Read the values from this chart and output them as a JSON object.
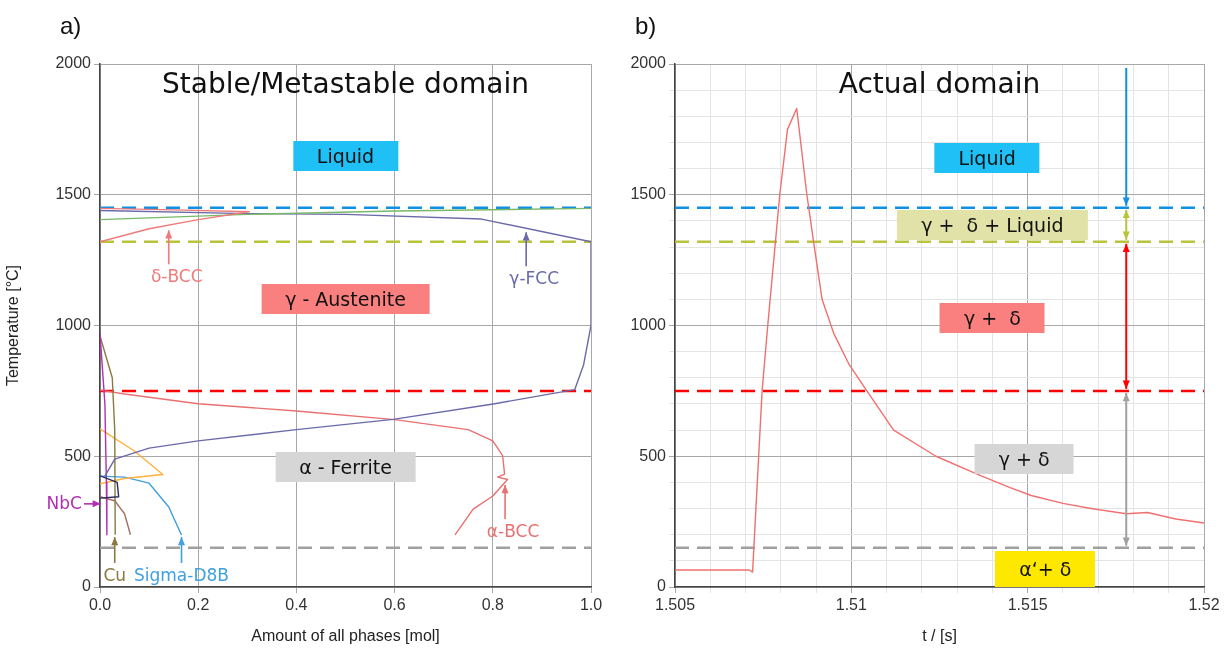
{
  "chart_data": [
    {
      "type": "line",
      "title": "a)",
      "subtitle": "Stable/Metastable domain",
      "xlabel": "Amount of all phases [mol]",
      "ylabel": "Temperature [°C]",
      "xlim": [
        0,
        1
      ],
      "ylim": [
        0,
        2000
      ],
      "xticks": [
        {
          "value": 0,
          "label": "0.0"
        },
        0.2,
        0.4,
        0.6,
        0.8,
        {
          "value": 1,
          "label": "1.0"
        }
      ],
      "yticks": [
        0,
        500,
        1000,
        1500,
        2000
      ],
      "grid": true,
      "series": [
        {
          "color": "#f07a7a",
          "x": [
            0,
            0.1,
            0.2,
            0.304,
            0.15,
            0
          ],
          "values": [
            1320,
            1370,
            1405,
            1435,
            1442,
            1448
          ]
        },
        {
          "color": "#78b868",
          "x": [
            0,
            0.3,
            0.6,
            1
          ],
          "values": [
            1405,
            1425,
            1438,
            1448
          ]
        },
        {
          "color": "#6a6aaa",
          "x": [
            0,
            0.3,
            0.5,
            0.777,
            1,
            1,
            0.985,
            0.967,
            0.804,
            0.597,
            0.4,
            0.2,
            0.1,
            0.03,
            0.01
          ],
          "values": [
            1440,
            1428,
            1425,
            1407,
            1320,
            1000,
            850,
            755,
            701,
            641,
            602,
            559,
            531,
            489,
            424
          ]
        },
        {
          "color": "#2a2a60",
          "x": [
            0,
            0.035,
            0.038,
            0
          ],
          "values": [
            425,
            400,
            345,
            340
          ]
        },
        {
          "color": "#b030b0",
          "x": [
            0,
            0.01,
            0.013,
            0.014
          ],
          "values": [
            970,
            700,
            400,
            200
          ]
        },
        {
          "color": "#8a7a40",
          "x": [
            0,
            0.025,
            0.03,
            0.031
          ],
          "values": [
            960,
            800,
            600,
            200
          ]
        },
        {
          "color": "#a07060",
          "x": [
            0,
            0.03,
            0.05,
            0.062
          ],
          "values": [
            345,
            330,
            280,
            200
          ]
        },
        {
          "color": "#ffb040",
          "x": [
            0,
            0.07,
            0.128,
            0.05,
            0
          ],
          "values": [
            605,
            520,
            430,
            415,
            395
          ]
        },
        {
          "color": "#40a0e0",
          "x": [
            0,
            0.05,
            0.1,
            0.14,
            0.166
          ],
          "values": [
            424,
            420,
            397,
            306,
            199
          ]
        },
        {
          "color": "#e87070",
          "x": [
            0,
            0.05,
            0.2,
            0.4,
            0.6,
            0.75,
            0.8,
            0.82,
            0.824,
            0.81,
            0.83,
            0.8,
            0.76,
            0.723
          ],
          "values": [
            753,
            738,
            701,
            673,
            640,
            602,
            559,
            502,
            432,
            420,
            411,
            348,
            298,
            199
          ]
        }
      ],
      "ref_lines": [
        {
          "axis": "y",
          "value": 1450,
          "color": "#1090e0",
          "line_style": "dashed"
        },
        {
          "axis": "y",
          "value": 1320,
          "color": "#b8c43a",
          "line_style": "dashed"
        },
        {
          "axis": "y",
          "value": 750,
          "color": "#ff0000",
          "line_style": "dashed"
        },
        {
          "axis": "y",
          "value": 150,
          "color": "#a0a0a0",
          "line_style": "dashed"
        }
      ],
      "annotations": [
        "Liquid",
        "γ - Austenite",
        "α - Ferrite",
        {
          "text": "δ-BCC",
          "x": 0.14,
          "y": 1364
        },
        {
          "text": "γ-FCC",
          "x": 0.868,
          "y": 1357
        },
        {
          "text": "α-BCC",
          "x": 0.825,
          "y": 390
        },
        {
          "text": "NbC",
          "x": 0.008,
          "y": 318
        },
        {
          "text": "Cu",
          "x": 0.03,
          "y": 191
        },
        {
          "text": "Sigma-D8B",
          "x": 0.166,
          "y": 191
        }
      ]
    },
    {
      "type": "line",
      "title": "b)",
      "subtitle": "Actual domain",
      "xlabel": "t / [s]",
      "xlim": [
        1.505,
        1.52
      ],
      "ylim": [
        0,
        2000
      ],
      "xticks": [
        1.505,
        {
          "value": 1.506,
          "label": null
        },
        {
          "value": 1.507,
          "label": null
        },
        {
          "value": 1.508,
          "label": null
        },
        {
          "value": 1.509,
          "label": null
        },
        1.51,
        {
          "value": 1.511,
          "label": null
        },
        {
          "value": 1.512,
          "label": null
        },
        {
          "value": 1.513,
          "label": null
        },
        {
          "value": 1.514,
          "label": null
        },
        1.515,
        {
          "value": 1.516,
          "label": null
        },
        {
          "value": 1.517,
          "label": null
        },
        {
          "value": 1.518,
          "label": null
        },
        {
          "value": 1.519,
          "label": null
        },
        1.52
      ],
      "yticks": [
        0,
        {
          "value": 100,
          "label": null
        },
        {
          "value": 200,
          "label": null
        },
        {
          "value": 300,
          "label": null
        },
        {
          "value": 400,
          "label": null
        },
        500,
        {
          "value": 600,
          "label": null
        },
        {
          "value": 700,
          "label": null
        },
        {
          "value": 800,
          "label": null
        },
        {
          "value": 900,
          "label": null
        },
        1000,
        {
          "value": 1100,
          "label": null
        },
        {
          "value": 1200,
          "label": null
        },
        {
          "value": 1300,
          "label": null
        },
        {
          "value": 1400,
          "label": null
        },
        1500,
        {
          "value": 1600,
          "label": null
        },
        {
          "value": 1700,
          "label": null
        },
        {
          "value": 1800,
          "label": null
        },
        {
          "value": 1900,
          "label": null
        },
        2000
      ],
      "grid": true,
      "series": [
        {
          "color": "#f07070",
          "x": [
            1.505,
            1.5071,
            1.5072,
            1.50747,
            1.50763,
            1.50797,
            1.50819,
            1.50845,
            1.50874,
            1.50893,
            1.50917,
            1.5095,
            1.50994,
            1.51044,
            1.5112,
            1.5124,
            1.5136,
            1.5145,
            1.5151,
            1.516,
            1.5168,
            1.5178,
            1.5184,
            1.5192,
            1.52
          ],
          "values": [
            65,
            65,
            57,
            750,
            1000,
            1500,
            1750,
            1830,
            1500,
            1320,
            1100,
            970,
            850,
            750,
            600,
            500,
            430,
            380,
            350,
            320,
            300,
            280,
            285,
            260,
            245
          ]
        }
      ],
      "ref_lines": [
        {
          "axis": "y",
          "value": 1450,
          "color": "#1090e0",
          "line_style": "dashed"
        },
        {
          "axis": "y",
          "value": 1320,
          "color": "#b8c43a",
          "line_style": "dashed"
        },
        {
          "axis": "y",
          "value": 750,
          "color": "#ff0000",
          "line_style": "dashed"
        },
        {
          "axis": "y",
          "value": 150,
          "color": "#a0a0a0",
          "line_style": "dashed"
        }
      ],
      "annotations": [
        "Liquid",
        "γ +  δ + Liquid",
        "γ +  δ",
        "γ + δ",
        "α‘+ δ"
      ]
    }
  ]
}
